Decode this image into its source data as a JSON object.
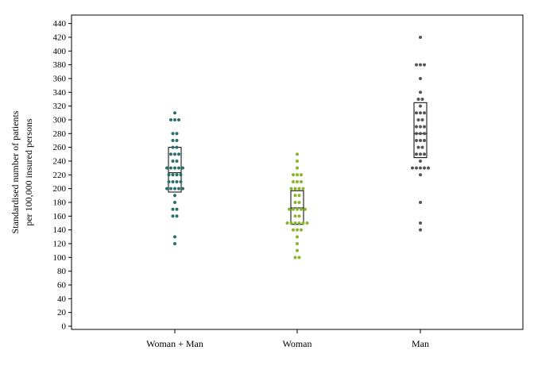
{
  "chart_data": {
    "type": "scatter",
    "subtype": "dot-strip-with-iqr-box",
    "ylabel_line1": "Standardised number of patients",
    "ylabel_line2": "per 100,000 insured persons",
    "ylim": [
      0,
      450
    ],
    "yticks": [
      0,
      20,
      40,
      60,
      80,
      100,
      120,
      140,
      160,
      180,
      200,
      220,
      240,
      260,
      280,
      300,
      320,
      340,
      360,
      380,
      400,
      420,
      440
    ],
    "grid": false,
    "categories": [
      "Woman + Man",
      "Woman",
      "Man"
    ],
    "series": [
      {
        "category": "Woman + Man",
        "color": "#2a6f6b",
        "box": {
          "q1": 195,
          "median": 223,
          "q3": 260
        },
        "points": [
          310,
          300,
          300,
          300,
          280,
          280,
          270,
          270,
          260,
          260,
          250,
          250,
          250,
          240,
          240,
          230,
          230,
          230,
          230,
          230,
          220,
          220,
          220,
          220,
          210,
          210,
          210,
          210,
          200,
          200,
          200,
          200,
          200,
          190,
          180,
          170,
          170,
          160,
          160,
          130,
          120
        ]
      },
      {
        "category": "Woman",
        "color": "#8ab52a",
        "box": {
          "q1": 148,
          "median": 172,
          "q3": 197
        },
        "points": [
          250,
          240,
          230,
          220,
          220,
          220,
          210,
          210,
          210,
          200,
          200,
          200,
          200,
          190,
          190,
          180,
          180,
          170,
          170,
          170,
          170,
          170,
          160,
          160,
          150,
          150,
          150,
          150,
          150,
          150,
          140,
          140,
          140,
          130,
          120,
          110,
          100,
          100
        ]
      },
      {
        "category": "Man",
        "color": "#555555",
        "box": {
          "q1": 245,
          "median": 280,
          "q3": 325
        },
        "points": [
          420,
          380,
          380,
          380,
          360,
          340,
          330,
          330,
          320,
          310,
          310,
          310,
          300,
          300,
          290,
          290,
          290,
          280,
          280,
          280,
          270,
          270,
          270,
          260,
          260,
          250,
          250,
          250,
          240,
          230,
          230,
          230,
          230,
          230,
          220,
          180,
          150,
          140
        ]
      }
    ]
  }
}
